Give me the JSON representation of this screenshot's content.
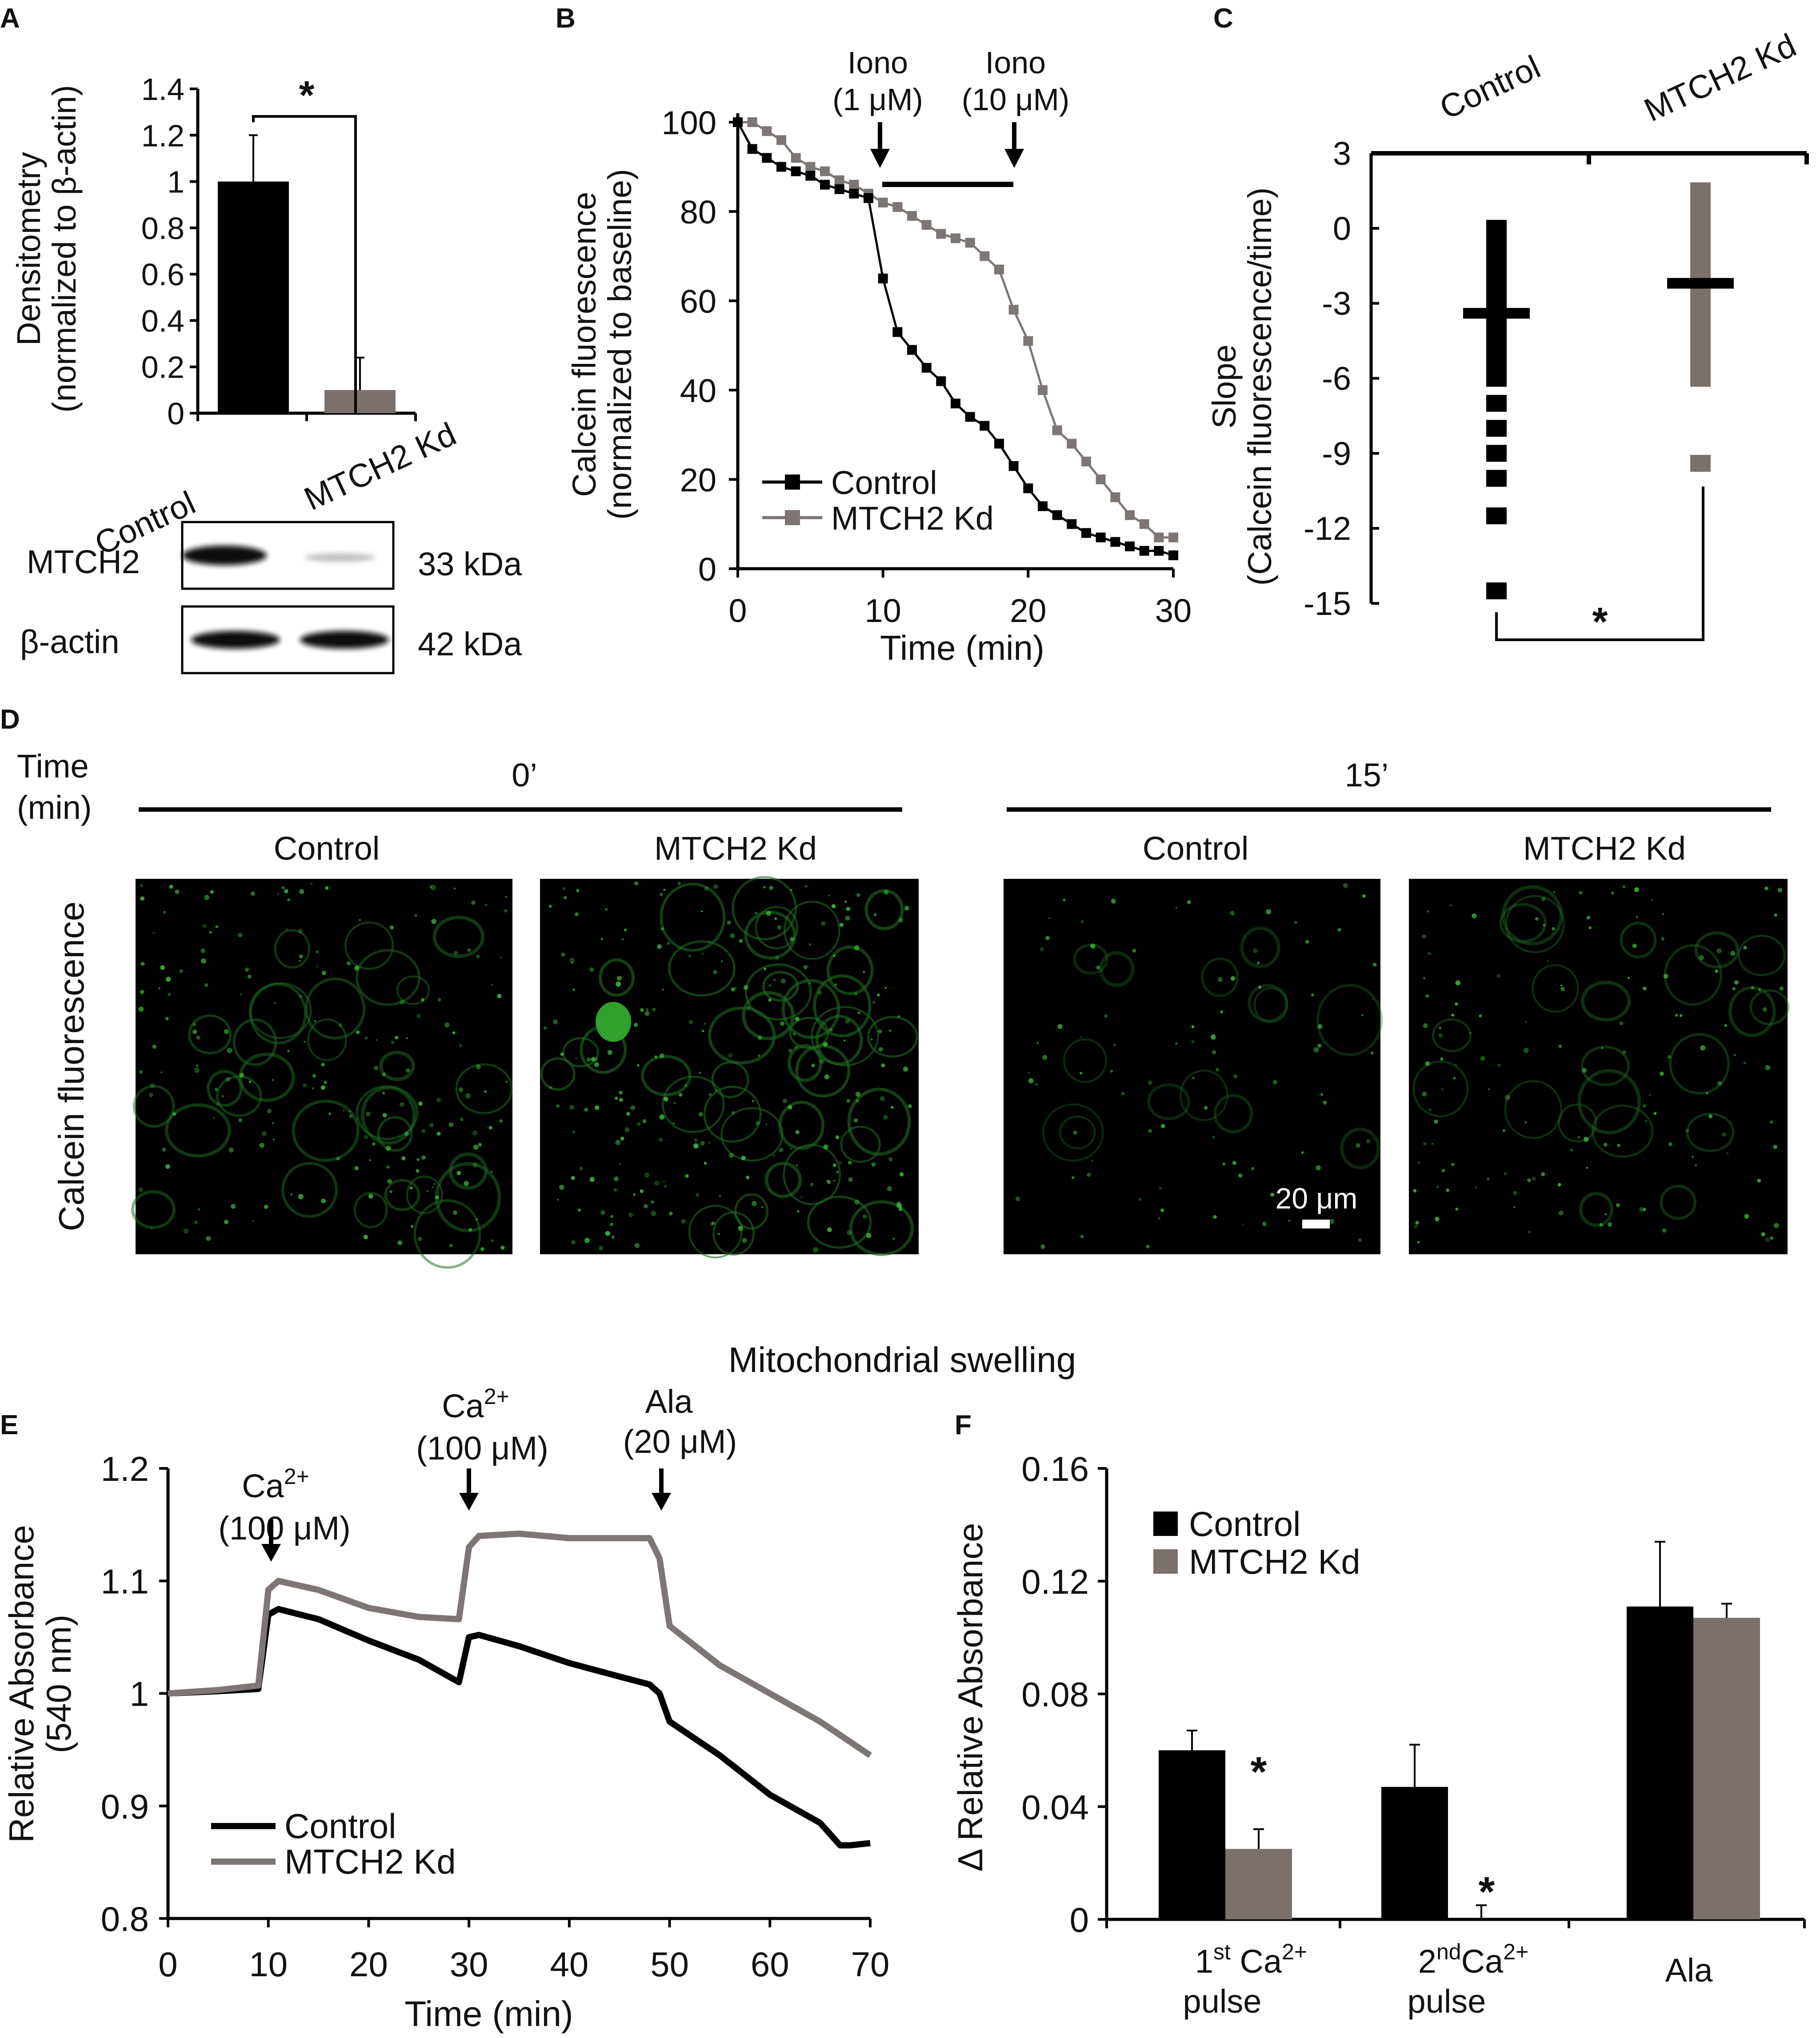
{
  "colors": {
    "control": "#000000",
    "kd": "#7a706c",
    "kd_line": "#7d7674",
    "dot": "#222"
  },
  "panelA": {
    "letter": "A",
    "ylabel1": "Densitometry",
    "ylabel2": "(normalized to β-actin)",
    "sig": "*",
    "ticks": [
      "1.4",
      "1.2",
      "1",
      "0.8",
      "0.6",
      "0.4",
      "0.2",
      "0"
    ],
    "blot_rows": [
      "MTCH2",
      "β-actin"
    ],
    "blot_kda": [
      "33 kDa",
      "42 kDa"
    ]
  },
  "panelB": {
    "letter": "B",
    "ylabel1": "Calcein fluorescence",
    "ylabel2": "(normalized to baseline)",
    "xlabel": "Time (min)",
    "ann1_l1": "Iono",
    "ann1_l2": "(1 μM)",
    "ann2_l1": "Iono",
    "ann2_l2": "(10 μM)",
    "legend": [
      "Control",
      "MTCH2 Kd"
    ],
    "yticks": [
      "100",
      "80",
      "60",
      "40",
      "20",
      "0"
    ],
    "xticks": [
      "0",
      "10",
      "20",
      "30"
    ]
  },
  "panelC": {
    "letter": "C",
    "ylabel1": "Slope",
    "ylabel2": "(Calcein fluorescence/time)",
    "cat1": "Control",
    "cat2": "MTCH2 Kd",
    "sig": "*",
    "yticks": [
      "3",
      "0",
      "-3",
      "-6",
      "-9",
      "-12",
      "-15"
    ]
  },
  "panelD": {
    "letter": "D",
    "time_l1": "Time",
    "time_l2": "(min)",
    "t0": "0’",
    "t15": "15’",
    "cols": [
      "Control",
      "MTCH2 Kd",
      "Control",
      "MTCH2 Kd"
    ],
    "rowlabel": "Calcein fluorescence",
    "scalebar": "20 μm"
  },
  "swelling_title": "Mitochondrial swelling",
  "panelE": {
    "letter": "E",
    "ylabel1": "Relative Absorbance",
    "ylabel2": "(540 nm)",
    "xlabel": "Time (min)",
    "ann1": [
      "Ca",
      "2+",
      "(100 μM)"
    ],
    "ann2": [
      "Ca",
      "2+",
      "(100 μM)"
    ],
    "ann3": [
      "Ala",
      "(20 μM)"
    ],
    "legend": [
      "Control",
      "MTCH2 Kd"
    ],
    "yticks": [
      "1.2",
      "1.1",
      "1",
      "0.9",
      "0.8"
    ],
    "xticks": [
      "0",
      "10",
      "20",
      "30",
      "40",
      "50",
      "60",
      "70"
    ]
  },
  "panelF": {
    "letter": "F",
    "ylabel": "Δ Relative Absorbance",
    "legend": [
      "Control",
      "MTCH2 Kd"
    ],
    "yticks": [
      "0.16",
      "0.12",
      "0.08",
      "0.04",
      "0"
    ],
    "cat1_a": "1",
    "cat1_sup": "st",
    "cat1_b": " Ca",
    "cat1_sup2": "2+",
    "cat1_c": "pulse",
    "cat2_a": "2",
    "cat2_sup": "nd",
    "cat2_b": "Ca",
    "cat2_sup2": "2+",
    "cat2_c": "pulse",
    "cat3": "Ala",
    "sig": "*"
  },
  "chart_data": [
    {
      "panel": "A",
      "type": "bar",
      "categories": [
        "Control",
        "MTCH2 Kd"
      ],
      "values": [
        1.0,
        0.1
      ],
      "errors": [
        0.2,
        0.14
      ],
      "ylim": [
        0,
        1.4
      ],
      "ylabel": "Densitometry (normalized to β-actin)"
    },
    {
      "panel": "B",
      "type": "line",
      "xlabel": "Time (min)",
      "ylabel": "Calcein fluorescence (normalized to baseline)",
      "xlim": [
        0,
        30
      ],
      "ylim": [
        0,
        100
      ],
      "series": [
        {
          "name": "Control",
          "x": [
            0,
            1,
            2,
            3,
            4,
            5,
            6,
            7,
            8,
            9,
            10,
            11,
            12,
            13,
            14,
            15,
            16,
            17,
            18,
            19,
            20,
            21,
            22,
            23,
            24,
            25,
            26,
            27,
            28,
            29,
            30
          ],
          "values": [
            100,
            94,
            92,
            90,
            89,
            88,
            86,
            85,
            84,
            83,
            65,
            53,
            49,
            45,
            42,
            37,
            34,
            32,
            28,
            23,
            18,
            14,
            12,
            10,
            8,
            7,
            6,
            5,
            4,
            4,
            3
          ]
        },
        {
          "name": "MTCH2 Kd",
          "x": [
            0,
            1,
            2,
            3,
            4,
            5,
            6,
            7,
            8,
            9,
            10,
            11,
            12,
            13,
            14,
            15,
            16,
            17,
            18,
            19,
            20,
            21,
            22,
            23,
            24,
            25,
            26,
            27,
            28,
            29,
            30
          ],
          "values": [
            100,
            100,
            98,
            96,
            92,
            90,
            89,
            87,
            86,
            84,
            82,
            81,
            79,
            77,
            75,
            74,
            73,
            70,
            67,
            58,
            51,
            40,
            31,
            28,
            24,
            20,
            16,
            12,
            10,
            7,
            7
          ]
        }
      ]
    },
    {
      "panel": "C",
      "type": "scatter",
      "categories": [
        "Control",
        "MTCH2 Kd"
      ],
      "ylim": [
        -15,
        3
      ],
      "series": [
        {
          "name": "Control",
          "values": [
            0,
            -0.5,
            -1,
            -1.5,
            -2,
            -2.5,
            -3,
            -3.5,
            -4,
            -4.5,
            -5,
            -5.5,
            -6,
            -7,
            -8,
            -9,
            -10,
            -11.5,
            -14.5
          ],
          "mean": -3.4
        },
        {
          "name": "MTCH2 Kd",
          "values": [
            1.5,
            1,
            0.5,
            0,
            -0.5,
            -1,
            -1.5,
            -2,
            -2.5,
            -3,
            -3.5,
            -4,
            -4.5,
            -5,
            -5.5,
            -6,
            -9.4
          ],
          "mean": -2.2
        }
      ]
    },
    {
      "panel": "E",
      "type": "line",
      "xlabel": "Time (min)",
      "ylabel": "Relative Absorbance (540 nm)",
      "xlim": [
        0,
        70
      ],
      "ylim": [
        0.8,
        1.2
      ],
      "series": [
        {
          "name": "Control",
          "x": [
            0,
            5,
            9,
            10,
            11,
            15,
            20,
            25,
            29,
            30,
            31,
            35,
            40,
            45,
            48,
            49,
            50,
            55,
            60,
            65,
            67,
            68,
            70
          ],
          "values": [
            1.0,
            1.002,
            1.004,
            1.07,
            1.075,
            1.066,
            1.047,
            1.03,
            1.01,
            1.05,
            1.052,
            1.042,
            1.027,
            1.015,
            1.008,
            1.0,
            0.975,
            0.945,
            0.91,
            0.885,
            0.865,
            0.865,
            0.867
          ]
        },
        {
          "name": "MTCH2 Kd",
          "x": [
            0,
            5,
            9,
            10,
            11,
            15,
            20,
            25,
            29,
            30,
            31,
            35,
            40,
            45,
            48,
            49,
            50,
            55,
            60,
            65,
            70
          ],
          "values": [
            1.0,
            1.003,
            1.007,
            1.092,
            1.1,
            1.092,
            1.076,
            1.068,
            1.066,
            1.13,
            1.14,
            1.142,
            1.138,
            1.138,
            1.138,
            1.12,
            1.06,
            1.025,
            1.0,
            0.975,
            0.945
          ]
        }
      ]
    },
    {
      "panel": "F",
      "type": "bar",
      "categories": [
        "1st Ca2+ pulse",
        "2nd Ca2+ pulse",
        "Ala"
      ],
      "ylim": [
        0,
        0.16
      ],
      "series": [
        {
          "name": "Control",
          "values": [
            0.06,
            0.047,
            0.111
          ],
          "errors": [
            0.007,
            0.015,
            0.023
          ]
        },
        {
          "name": "MTCH2 Kd",
          "values": [
            0.025,
            0.0,
            0.107
          ],
          "errors": [
            0.007,
            0.005,
            0.005
          ]
        }
      ]
    }
  ]
}
